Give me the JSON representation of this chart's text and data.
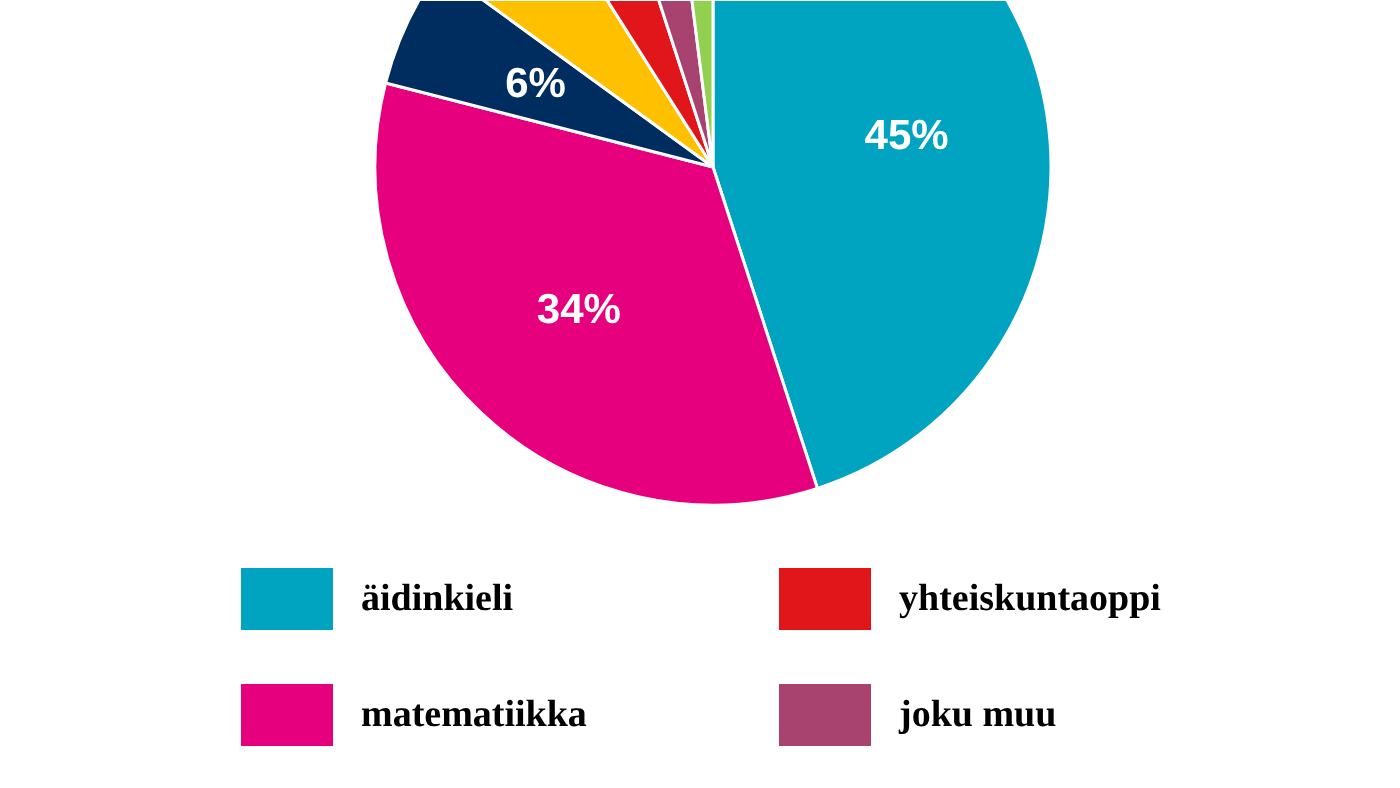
{
  "chart_data": {
    "type": "pie",
    "categories": [
      "äidinkieli",
      "matematiikka",
      null,
      null,
      "yhteiskuntaoppi",
      "joku muu",
      null
    ],
    "values": [
      45,
      34,
      6,
      6,
      4,
      3,
      2
    ],
    "colors": [
      "#00a3c0",
      "#e6007e",
      "#002d5f",
      "#ffc000",
      "#e0161a",
      "#a8426f",
      "#92d050"
    ],
    "value_labels": [
      "45%",
      "34%",
      "6%",
      null,
      null,
      null,
      null
    ],
    "legend": "bottom"
  }
}
